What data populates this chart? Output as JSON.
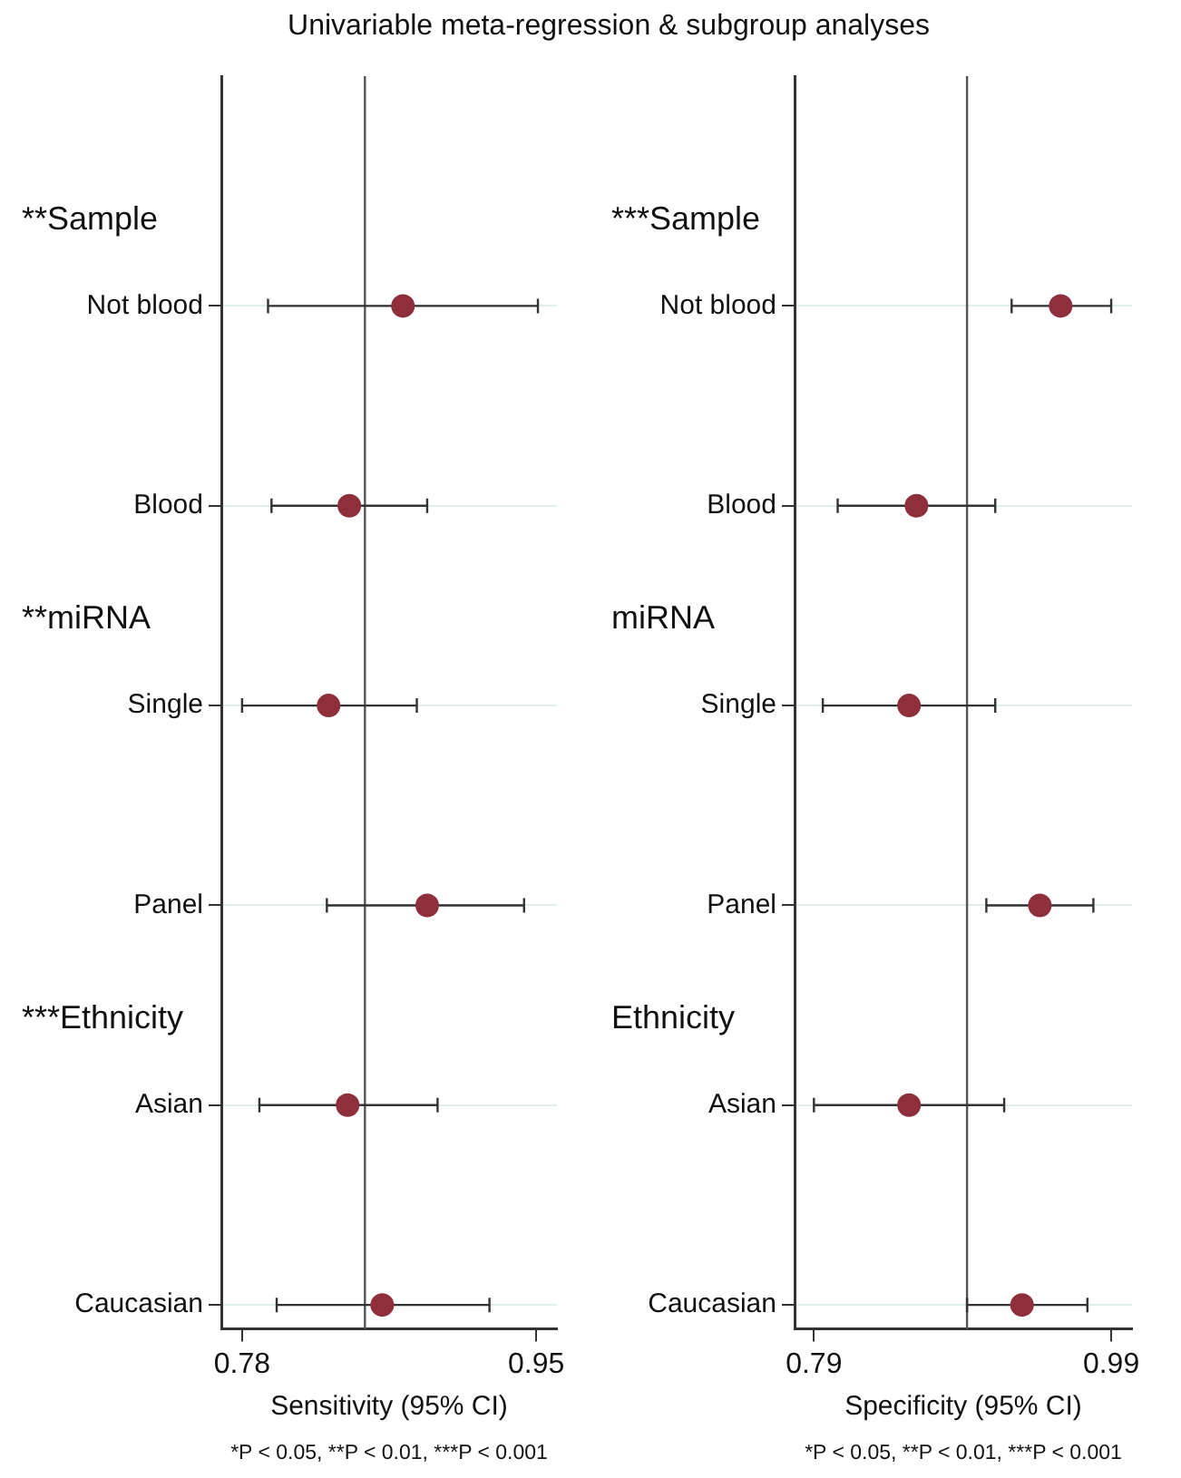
{
  "chart_data": [
    {
      "type": "scatter",
      "orientation": "horizontal",
      "title": "Univariable meta-regression & subgroup analyses",
      "xlabel": "Sensitivity (95% CI)",
      "categories": [
        "Not blood",
        "Blood",
        "Single",
        "Panel",
        "Asian",
        "Caucasian"
      ],
      "values": [
        0.873,
        0.842,
        0.83,
        0.887,
        0.841,
        0.861
      ],
      "errors": [
        [
          0.795,
          0.951
        ],
        [
          0.797,
          0.887
        ],
        [
          0.78,
          0.881
        ],
        [
          0.829,
          0.943
        ],
        [
          0.79,
          0.893
        ],
        [
          0.8,
          0.923
        ]
      ],
      "color": "#8e2f3b",
      "marker": "circle",
      "grid": "y",
      "xlim": [
        0.768,
        0.962
      ],
      "xticks": [
        0.78,
        0.95
      ],
      "ref_lines": [
        {
          "axis": "x",
          "value": 0.851,
          "color": "#555555"
        }
      ],
      "annotations": [
        "**Sample",
        "**miRNA",
        "***Ethnicity",
        "*P < 0.05, **P < 0.01, ***P < 0.001"
      ]
    },
    {
      "type": "scatter",
      "orientation": "horizontal",
      "xlabel": "Specificity (95% CI)",
      "categories": [
        "Not blood",
        "Blood",
        "Single",
        "Panel",
        "Asian",
        "Caucasian"
      ],
      "values": [
        0.956,
        0.859,
        0.854,
        0.942,
        0.854,
        0.93
      ],
      "errors": [
        [
          0.923,
          0.99
        ],
        [
          0.806,
          0.912
        ],
        [
          0.796,
          0.912
        ],
        [
          0.906,
          0.978
        ],
        [
          0.79,
          0.918
        ],
        [
          0.893,
          0.974
        ]
      ],
      "color": "#8e2f3b",
      "marker": "circle",
      "grid": "y",
      "xlim": [
        0.777,
        1.004
      ],
      "xticks": [
        0.79,
        0.99
      ],
      "ref_lines": [
        {
          "axis": "x",
          "value": 0.893,
          "color": "#555555"
        }
      ],
      "annotations": [
        "***Sample",
        "miRNA",
        "Ethnicity",
        "*P < 0.05, **P < 0.01, ***P < 0.001"
      ]
    }
  ]
}
